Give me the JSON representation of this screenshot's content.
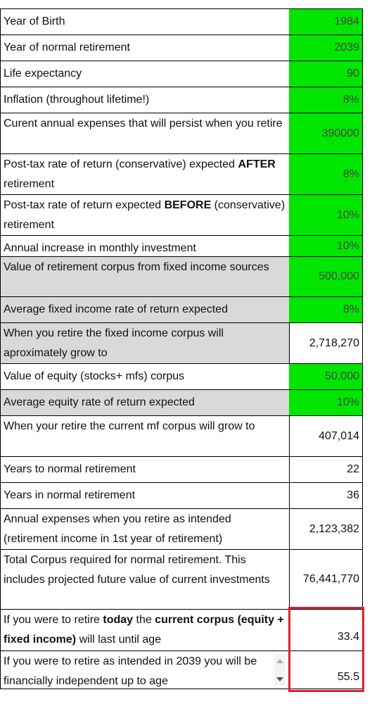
{
  "table": {
    "rows": [
      {
        "label": "Year of Birth",
        "value": "1984",
        "value_bg": "#00e600"
      },
      {
        "label": "Year of normal retirement",
        "value": "2039",
        "value_bg": "#00e600"
      },
      {
        "label": "Life expectancy",
        "value": "90",
        "value_bg": "#00e600"
      },
      {
        "label": "Inflation (throughout lifetime!)",
        "value": "8%",
        "value_bg": "#00e600"
      },
      {
        "label": "Curent annual expenses that will persist when you retire",
        "value": "390000",
        "value_bg": "#00e600"
      },
      {
        "label": [
          {
            "text": "Post-tax rate of return (conservative) expected ",
            "bold": false
          },
          {
            "text": "AFTER",
            "bold": true
          },
          {
            "text": " retirement",
            "bold": false
          }
        ],
        "value": "8%",
        "value_bg": "#00e600"
      },
      {
        "label": [
          {
            "text": "Post-tax rate of return expected ",
            "bold": false
          },
          {
            "text": "BEFORE",
            "bold": true
          },
          {
            "text": " (conservative) retirement",
            "bold": false
          }
        ],
        "value": "10%",
        "value_bg": "#00e600"
      },
      {
        "label": "Annual increase in monthly investment",
        "value": "10%",
        "value_bg": "#00e600"
      },
      {
        "label": "Value of retirement corpus from fixed income sources",
        "value": "500,000",
        "label_bg": "#d9d9d9",
        "value_bg": "#00e600"
      },
      {
        "label": "Average fixed income rate of return expected",
        "value": "8%",
        "label_bg": "#d9d9d9",
        "value_bg": "#00e600"
      },
      {
        "label": "When you retire the fixed income corpus will aproximately grow to",
        "value": "2,718,270",
        "label_bg": "#d9d9d9"
      },
      {
        "label": "Value of equity (stocks+ mfs) corpus",
        "value": "50,000",
        "value_bg": "#00e600"
      },
      {
        "label": "Average equity rate of return expected",
        "value": "10%",
        "label_bg": "#d9d9d9",
        "value_bg": "#00e600"
      },
      {
        "label": "When your retire the current mf corpus will grow to",
        "value": "407,014"
      },
      {
        "label": "Years to normal retirement",
        "value": "22"
      },
      {
        "label": "Years in normal retirement",
        "value": "36"
      },
      {
        "label": "Annual expenses  when you retire as intended (retirement income in 1st year of retirement)",
        "value": "2,123,382"
      },
      {
        "label": "Total Corpus required for normal retirement. This includes projected future value of current investments",
        "value": "76,441,770"
      },
      {
        "label": [
          {
            "text": "If you were to retire ",
            "bold": false
          },
          {
            "text": "today",
            "bold": true
          },
          {
            "text": " the ",
            "bold": false
          },
          {
            "text": "current corpus (equity + fixed income)",
            "bold": true
          },
          {
            "text": " will last until age",
            "bold": false
          }
        ],
        "value": "33.4"
      },
      {
        "label": "If you were to retire as intended in 2039 you will be financially independent up to age",
        "value": "55.5"
      }
    ]
  }
}
